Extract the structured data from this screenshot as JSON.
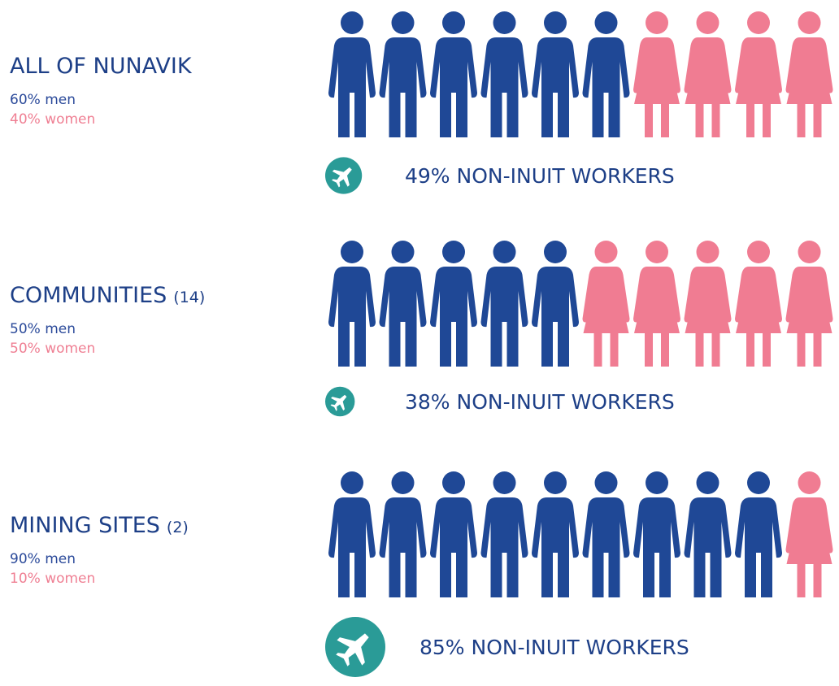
{
  "rows": [
    {
      "title": "ALL OF NUNAVIK",
      "men": {
        "value": 60,
        "label": "60% men"
      },
      "women": {
        "value": 40,
        "label": "40% women"
      },
      "non_inuit": {
        "value": 49,
        "label": "49% NON-INUIT WORKERS"
      }
    },
    {
      "title": "COMMUNITIES",
      "count": "(14)",
      "men": {
        "value": 50,
        "label": "50% men"
      },
      "women": {
        "value": 50,
        "label": "50% women"
      },
      "non_inuit": {
        "value": 38,
        "label": "38% NON-INUIT WORKERS"
      }
    },
    {
      "title": "MINING SITES",
      "count": "(2)",
      "men": {
        "value": 90,
        "label": "90% men"
      },
      "women": {
        "value": 10,
        "label": "10% women"
      },
      "non_inuit": {
        "value": 85,
        "label": "85% NON-INUIT WORKERS"
      }
    }
  ]
}
